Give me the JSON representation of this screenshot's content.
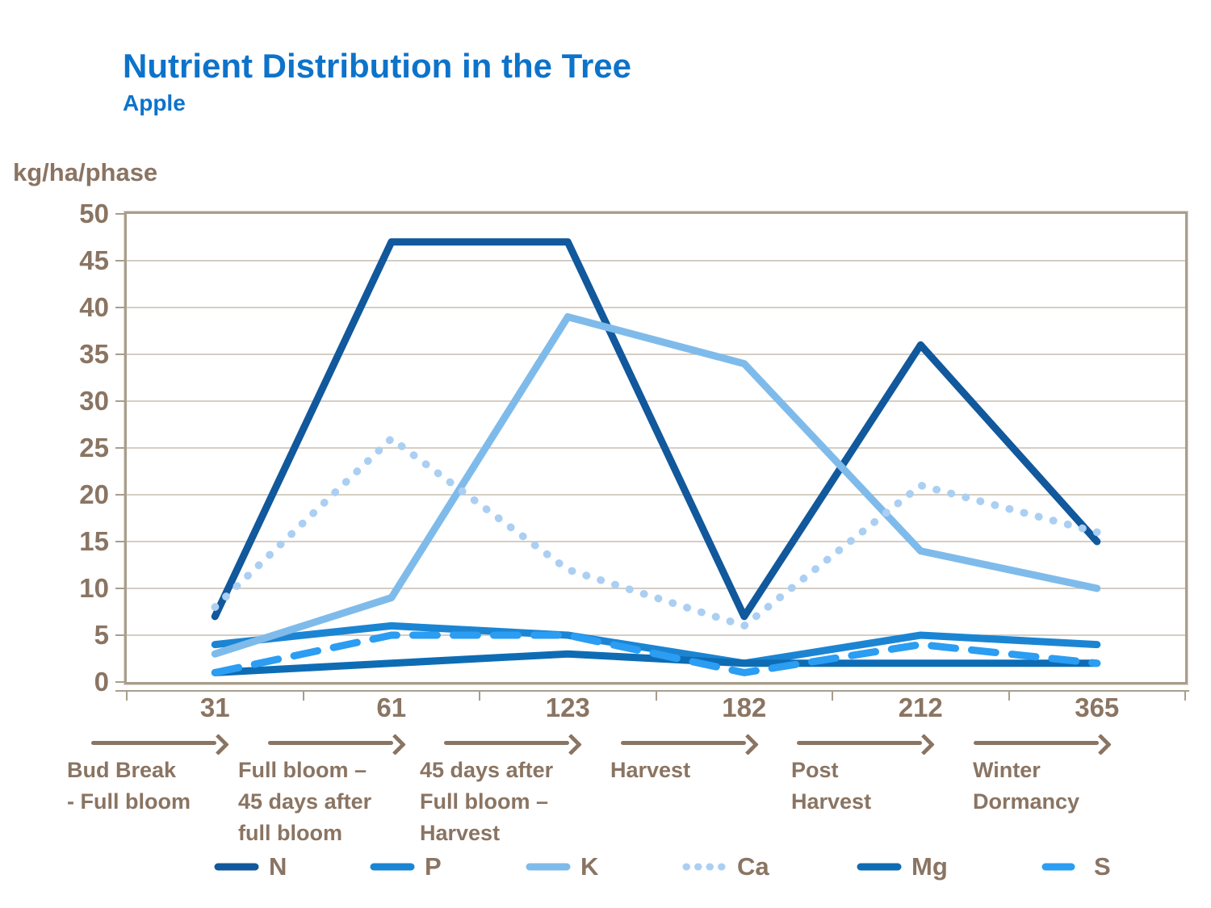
{
  "header": {
    "title": "Nutrient Distribution in the Tree",
    "subtitle": "Apple"
  },
  "y_axis": {
    "label": "kg/ha/phase",
    "ticks": [
      50,
      45,
      40,
      35,
      30,
      25,
      20,
      15,
      10,
      5,
      0
    ]
  },
  "x_axis": {
    "ticks": [
      "31",
      "61",
      "123",
      "182",
      "212",
      "365"
    ],
    "phases": [
      [
        "Bud Break",
        "- Full bloom"
      ],
      [
        "Full bloom –",
        "45 days after",
        "full bloom"
      ],
      [
        "45 days after",
        "Full bloom –",
        "Harvest"
      ],
      [
        "Harvest"
      ],
      [
        "Post",
        "Harvest"
      ],
      [
        "Winter",
        "Dormancy"
      ]
    ]
  },
  "chart_data": {
    "type": "line",
    "title": "Nutrient Distribution in the Tree",
    "subtitle": "Apple",
    "ylabel": "kg/ha/phase",
    "ylim": [
      0,
      50
    ],
    "ytick_step": 5,
    "grid": "horizontal",
    "legend_position": "bottom",
    "x": [
      31,
      61,
      123,
      182,
      212,
      365
    ],
    "x_phase_labels": [
      "Bud Break - Full bloom",
      "Full bloom – 45 days after full bloom",
      "45 days after Full bloom – Harvest",
      "Harvest",
      "Post Harvest",
      "Winter Dormancy"
    ],
    "series": [
      {
        "name": "N",
        "color": "#11589c",
        "style": "solid",
        "values": [
          7,
          47,
          47,
          7,
          36,
          15
        ]
      },
      {
        "name": "P",
        "color": "#1b85d3",
        "style": "solid",
        "values": [
          4,
          6,
          5,
          2,
          5,
          4
        ]
      },
      {
        "name": "K",
        "color": "#7fbbea",
        "style": "solid",
        "values": [
          3,
          9,
          39,
          34,
          14,
          10
        ]
      },
      {
        "name": "Ca",
        "color": "#abcff2",
        "style": "dotted",
        "values": [
          8,
          26,
          12,
          6,
          21,
          16
        ]
      },
      {
        "name": "Mg",
        "color": "#0e6cb4",
        "style": "solid",
        "values": [
          1,
          2,
          3,
          2,
          2,
          2
        ]
      },
      {
        "name": "S",
        "color": "#2b9df2",
        "style": "dashed",
        "values": [
          1,
          5,
          5,
          1,
          4,
          2
        ]
      }
    ]
  },
  "legend": {
    "entries": [
      "N",
      "P",
      "K",
      "Ca",
      "Mg",
      "S"
    ]
  },
  "colors": {
    "title_blue": "#0d73ca",
    "text_brown": "#8a7462",
    "grid": "#c7beb0",
    "frame": "#a89e8c"
  }
}
